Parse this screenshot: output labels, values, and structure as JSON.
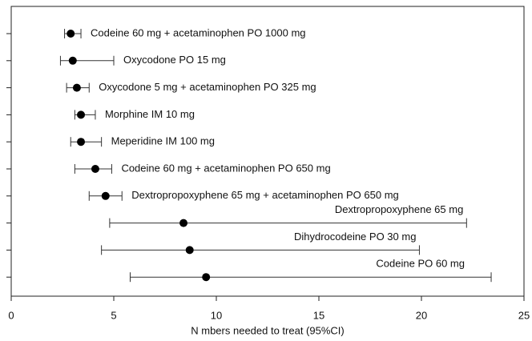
{
  "chart_data": {
    "type": "forest",
    "categories": [
      "Codeine 60 mg + acetaminophen PO 1000 mg",
      "Oxycodone PO 15 mg",
      "Oxycodone 5 mg + acetaminophen PO 325 mg",
      "Morphine IM 10 mg",
      "Meperidine IM 100 mg",
      "Codeine 60 mg + acetaminophen PO 650 mg",
      "Dextropropoxyphene 65 mg + acetaminophen PO 650 mg",
      "Dextropropoxyphene 65 mg",
      "Dihydrocodeine PO 30 mg",
      "Codeine PO 60 mg"
    ],
    "values": [
      2.9,
      3.0,
      3.2,
      3.4,
      3.4,
      4.1,
      4.6,
      8.4,
      8.7,
      9.5
    ],
    "lower": [
      2.6,
      2.4,
      2.7,
      3.1,
      2.9,
      3.1,
      3.8,
      4.8,
      4.4,
      5.8
    ],
    "upper": [
      3.4,
      5.0,
      3.8,
      4.1,
      4.4,
      4.9,
      5.4,
      22.2,
      19.9,
      23.4
    ],
    "color": "#000000",
    "xlim": [
      0,
      25
    ],
    "xticks": [
      0,
      5,
      10,
      15,
      20,
      25
    ],
    "xlabel": "N mbers needed to treat (95%CI)"
  }
}
